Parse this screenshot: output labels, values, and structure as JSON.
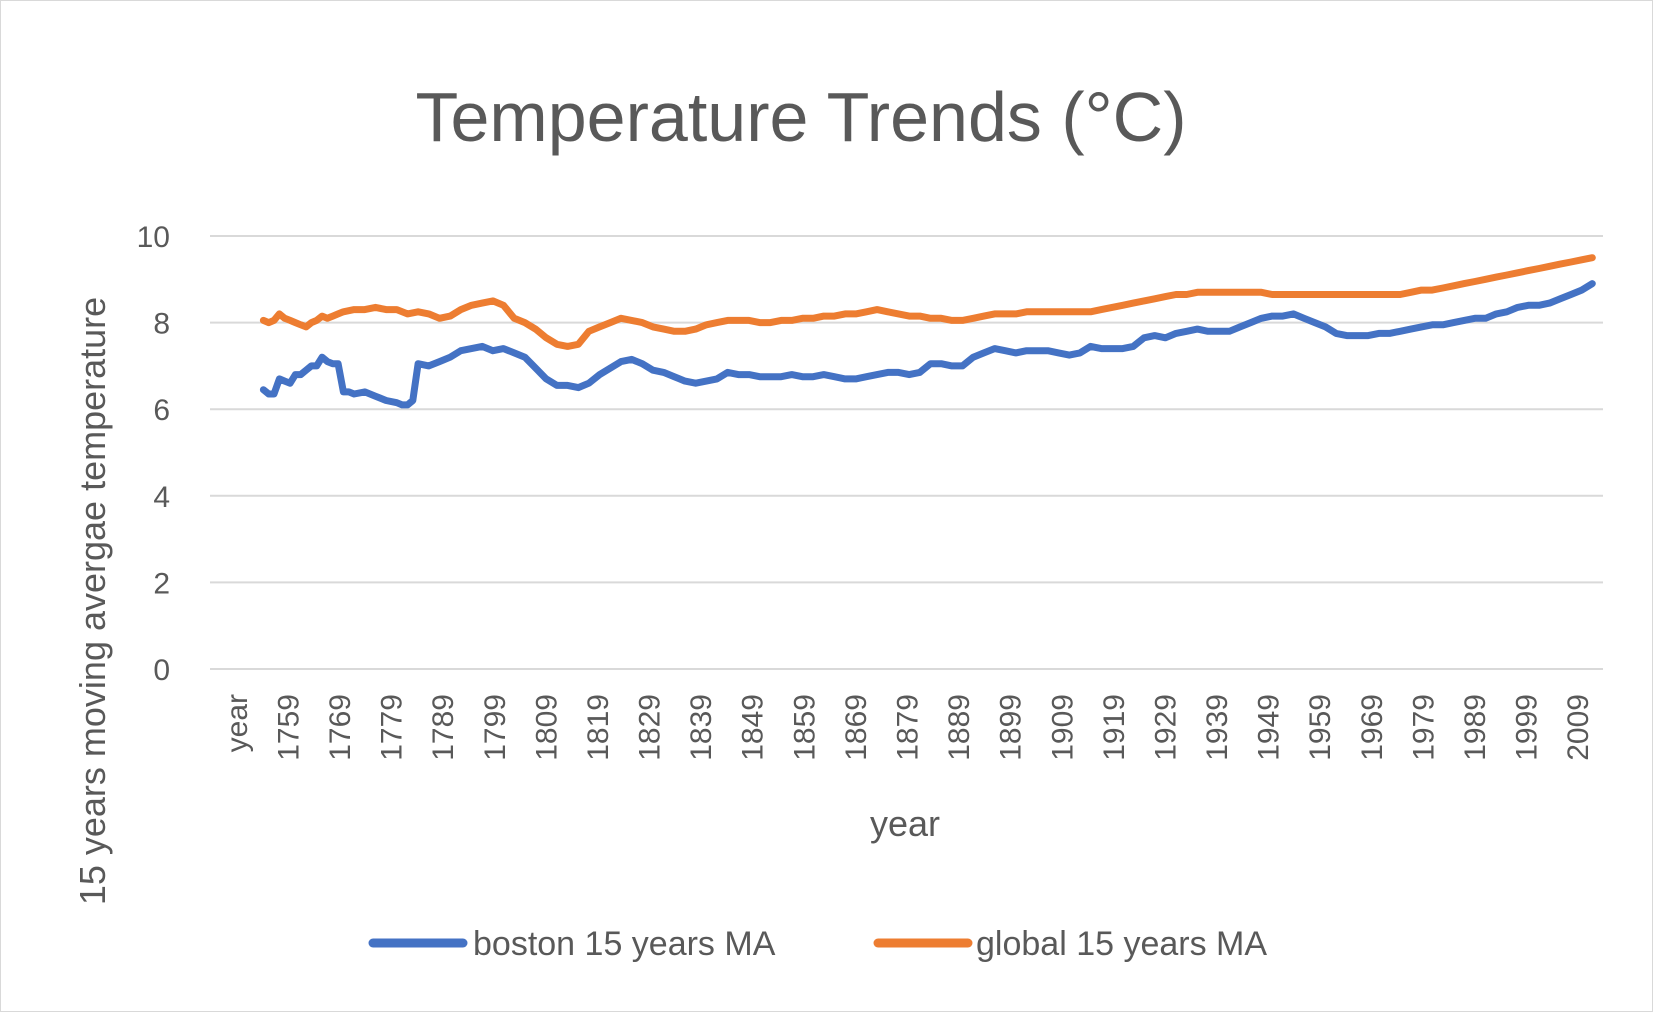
{
  "chart_data": {
    "type": "line",
    "title": "Temperature Trends (°C)",
    "xlabel": "year",
    "ylabel": "15 years moving avergae temperature",
    "ylim": [
      0,
      10
    ],
    "y_ticks": [
      0,
      2,
      4,
      6,
      8,
      10
    ],
    "x_tick_labels": [
      "year",
      "1759",
      "1769",
      "1779",
      "1789",
      "1799",
      "1809",
      "1819",
      "1829",
      "1839",
      "1849",
      "1859",
      "1869",
      "1879",
      "1889",
      "1899",
      "1909",
      "1919",
      "1929",
      "1939",
      "1949",
      "1959",
      "1969",
      "1979",
      "1989",
      "1999",
      "2009"
    ],
    "x_range": [
      1754,
      2015
    ],
    "grid": true,
    "legend_position": "bottom",
    "series": [
      {
        "name": "boston 15 years MA",
        "color": "#4472C4",
        "x": [
          1764,
          1765,
          1766,
          1767,
          1768,
          1769,
          1770,
          1771,
          1772,
          1773,
          1774,
          1775,
          1776,
          1777,
          1778,
          1779,
          1780,
          1781,
          1783,
          1785,
          1787,
          1789,
          1790,
          1791,
          1792,
          1793,
          1795,
          1797,
          1799,
          1801,
          1803,
          1805,
          1807,
          1809,
          1811,
          1813,
          1815,
          1817,
          1819,
          1821,
          1823,
          1825,
          1827,
          1829,
          1831,
          1833,
          1835,
          1837,
          1839,
          1841,
          1843,
          1845,
          1847,
          1849,
          1851,
          1853,
          1855,
          1857,
          1859,
          1861,
          1863,
          1865,
          1867,
          1869,
          1871,
          1873,
          1875,
          1877,
          1879,
          1881,
          1883,
          1885,
          1887,
          1889,
          1891,
          1893,
          1895,
          1897,
          1899,
          1901,
          1903,
          1905,
          1907,
          1909,
          1911,
          1913,
          1915,
          1917,
          1919,
          1921,
          1923,
          1925,
          1927,
          1929,
          1931,
          1933,
          1935,
          1937,
          1939,
          1941,
          1943,
          1945,
          1947,
          1949,
          1951,
          1953,
          1955,
          1957,
          1959,
          1961,
          1963,
          1965,
          1967,
          1969,
          1971,
          1973,
          1975,
          1977,
          1979,
          1981,
          1983,
          1985,
          1987,
          1989,
          1991,
          1993,
          1995,
          1997,
          1999,
          2001,
          2003,
          2005,
          2007,
          2009,
          2011,
          2013
        ],
        "y": [
          6.45,
          6.35,
          6.35,
          6.7,
          6.65,
          6.6,
          6.8,
          6.8,
          6.9,
          7.0,
          7.0,
          7.2,
          7.1,
          7.05,
          7.05,
          6.4,
          6.4,
          6.35,
          6.4,
          6.3,
          6.2,
          6.15,
          6.1,
          6.1,
          6.2,
          7.05,
          7.0,
          7.1,
          7.2,
          7.35,
          7.4,
          7.45,
          7.35,
          7.4,
          7.3,
          7.2,
          6.95,
          6.7,
          6.55,
          6.55,
          6.5,
          6.6,
          6.8,
          6.95,
          7.1,
          7.15,
          7.05,
          6.9,
          6.85,
          6.75,
          6.65,
          6.6,
          6.65,
          6.7,
          6.85,
          6.8,
          6.8,
          6.75,
          6.75,
          6.75,
          6.8,
          6.75,
          6.75,
          6.8,
          6.75,
          6.7,
          6.7,
          6.75,
          6.8,
          6.85,
          6.85,
          6.8,
          6.85,
          7.05,
          7.05,
          7.0,
          7.0,
          7.2,
          7.3,
          7.4,
          7.35,
          7.3,
          7.35,
          7.35,
          7.35,
          7.3,
          7.25,
          7.3,
          7.45,
          7.4,
          7.4,
          7.4,
          7.45,
          7.65,
          7.7,
          7.65,
          7.75,
          7.8,
          7.85,
          7.8,
          7.8,
          7.8,
          7.9,
          8.0,
          8.1,
          8.15,
          8.15,
          8.2,
          8.1,
          8.0,
          7.9,
          7.75,
          7.7,
          7.7,
          7.7,
          7.75,
          7.75,
          7.8,
          7.85,
          7.9,
          7.95,
          7.95,
          8.0,
          8.05,
          8.1,
          8.1,
          8.2,
          8.25,
          8.35,
          8.4,
          8.4,
          8.45,
          8.55,
          8.65,
          8.75,
          8.9
        ]
      },
      {
        "name": "global 15 years MA",
        "color": "#ED7D31",
        "x": [
          1764,
          1765,
          1766,
          1767,
          1768,
          1769,
          1770,
          1771,
          1772,
          1773,
          1774,
          1775,
          1776,
          1777,
          1778,
          1779,
          1781,
          1783,
          1785,
          1787,
          1789,
          1791,
          1793,
          1795,
          1797,
          1799,
          1801,
          1803,
          1805,
          1807,
          1809,
          1811,
          1813,
          1815,
          1817,
          1819,
          1821,
          1823,
          1825,
          1827,
          1829,
          1831,
          1833,
          1835,
          1837,
          1839,
          1841,
          1843,
          1845,
          1847,
          1849,
          1851,
          1853,
          1855,
          1857,
          1859,
          1861,
          1863,
          1865,
          1867,
          1869,
          1871,
          1873,
          1875,
          1877,
          1879,
          1881,
          1883,
          1885,
          1887,
          1889,
          1891,
          1893,
          1895,
          1897,
          1899,
          1901,
          1903,
          1905,
          1907,
          1909,
          1911,
          1913,
          1915,
          1917,
          1919,
          1921,
          1923,
          1925,
          1927,
          1929,
          1931,
          1933,
          1935,
          1937,
          1939,
          1941,
          1943,
          1945,
          1947,
          1949,
          1951,
          1953,
          1955,
          1957,
          1959,
          1961,
          1963,
          1965,
          1967,
          1969,
          1971,
          1973,
          1975,
          1977,
          1979,
          1981,
          1983,
          1985,
          1987,
          1989,
          1991,
          1993,
          1995,
          1997,
          1999,
          2001,
          2003,
          2005,
          2007,
          2009,
          2011,
          2013
        ],
        "y": [
          8.05,
          8.0,
          8.05,
          8.2,
          8.1,
          8.05,
          8.0,
          7.95,
          7.9,
          8.0,
          8.05,
          8.15,
          8.1,
          8.15,
          8.2,
          8.25,
          8.3,
          8.3,
          8.35,
          8.3,
          8.3,
          8.2,
          8.25,
          8.2,
          8.1,
          8.15,
          8.3,
          8.4,
          8.45,
          8.5,
          8.4,
          8.1,
          8.0,
          7.85,
          7.65,
          7.5,
          7.45,
          7.5,
          7.8,
          7.9,
          8.0,
          8.1,
          8.05,
          8.0,
          7.9,
          7.85,
          7.8,
          7.8,
          7.85,
          7.95,
          8.0,
          8.05,
          8.05,
          8.05,
          8.0,
          8.0,
          8.05,
          8.05,
          8.1,
          8.1,
          8.15,
          8.15,
          8.2,
          8.2,
          8.25,
          8.3,
          8.25,
          8.2,
          8.15,
          8.15,
          8.1,
          8.1,
          8.05,
          8.05,
          8.1,
          8.15,
          8.2,
          8.2,
          8.2,
          8.25,
          8.25,
          8.25,
          8.25,
          8.25,
          8.25,
          8.25,
          8.3,
          8.35,
          8.4,
          8.45,
          8.5,
          8.55,
          8.6,
          8.65,
          8.65,
          8.7,
          8.7,
          8.7,
          8.7,
          8.7,
          8.7,
          8.7,
          8.65,
          8.65,
          8.65,
          8.65,
          8.65,
          8.65,
          8.65,
          8.65,
          8.65,
          8.65,
          8.65,
          8.65,
          8.65,
          8.7,
          8.75,
          8.75,
          8.8,
          8.85,
          8.9,
          8.95,
          9.0,
          9.05,
          9.1,
          9.15,
          9.2,
          9.25,
          9.3,
          9.35,
          9.4,
          9.45,
          9.5
        ]
      }
    ]
  }
}
